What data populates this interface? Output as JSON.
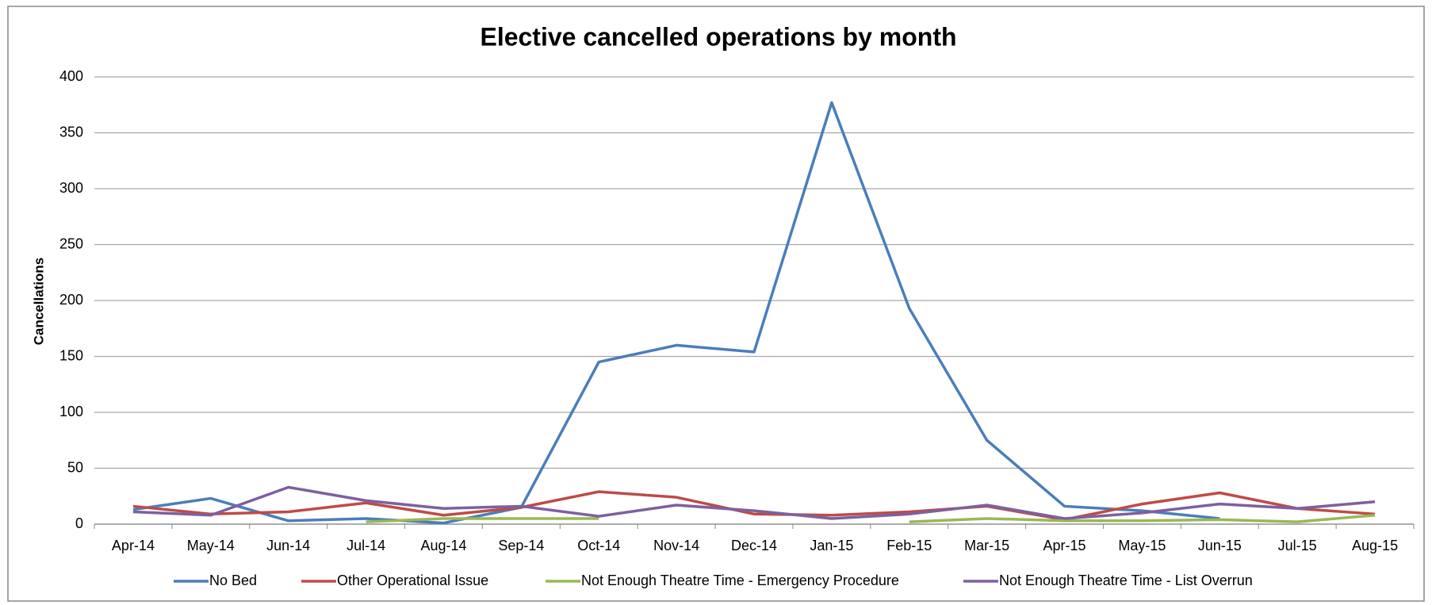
{
  "chart_data": {
    "type": "line",
    "title": "Elective cancelled operations by month",
    "y_label": "Cancellations",
    "categories": [
      "Apr-14",
      "May-14",
      "Jun-14",
      "Jul-14",
      "Aug-14",
      "Sep-14",
      "Oct-14",
      "Nov-14",
      "Dec-14",
      "Jan-15",
      "Feb-15",
      "Mar-15",
      "Apr-15",
      "May-15",
      "Jun-15",
      "Jul-15",
      "Aug-15"
    ],
    "series": [
      {
        "name": "No Bed",
        "color": "#4a7ebb",
        "values": [
          13,
          23,
          3,
          5,
          1,
          15,
          145,
          160,
          154,
          377,
          193,
          75,
          16,
          12,
          5,
          null,
          null
        ]
      },
      {
        "name": "Other Operational Issue",
        "color": "#be4b48",
        "values": [
          16,
          9,
          11,
          19,
          8,
          15,
          29,
          24,
          9,
          8,
          11,
          16,
          4,
          18,
          28,
          14,
          9
        ]
      },
      {
        "name": "Not Enough Theatre Time - Emergency Procedure",
        "color": "#98b954",
        "values": [
          null,
          null,
          null,
          2,
          5,
          5,
          5,
          null,
          null,
          null,
          2,
          5,
          3,
          3,
          4,
          2,
          8
        ]
      },
      {
        "name": "Not Enough Theatre Time - List Overrun",
        "color": "#7d60a0",
        "values": [
          11,
          8,
          33,
          21,
          14,
          16,
          7,
          17,
          12,
          5,
          9,
          17,
          5,
          10,
          18,
          14,
          20
        ]
      }
    ],
    "ylim": [
      0,
      400
    ],
    "yticks": [
      0,
      50,
      100,
      150,
      200,
      250,
      300,
      350,
      400
    ],
    "grid": true,
    "legend": "bottom"
  }
}
